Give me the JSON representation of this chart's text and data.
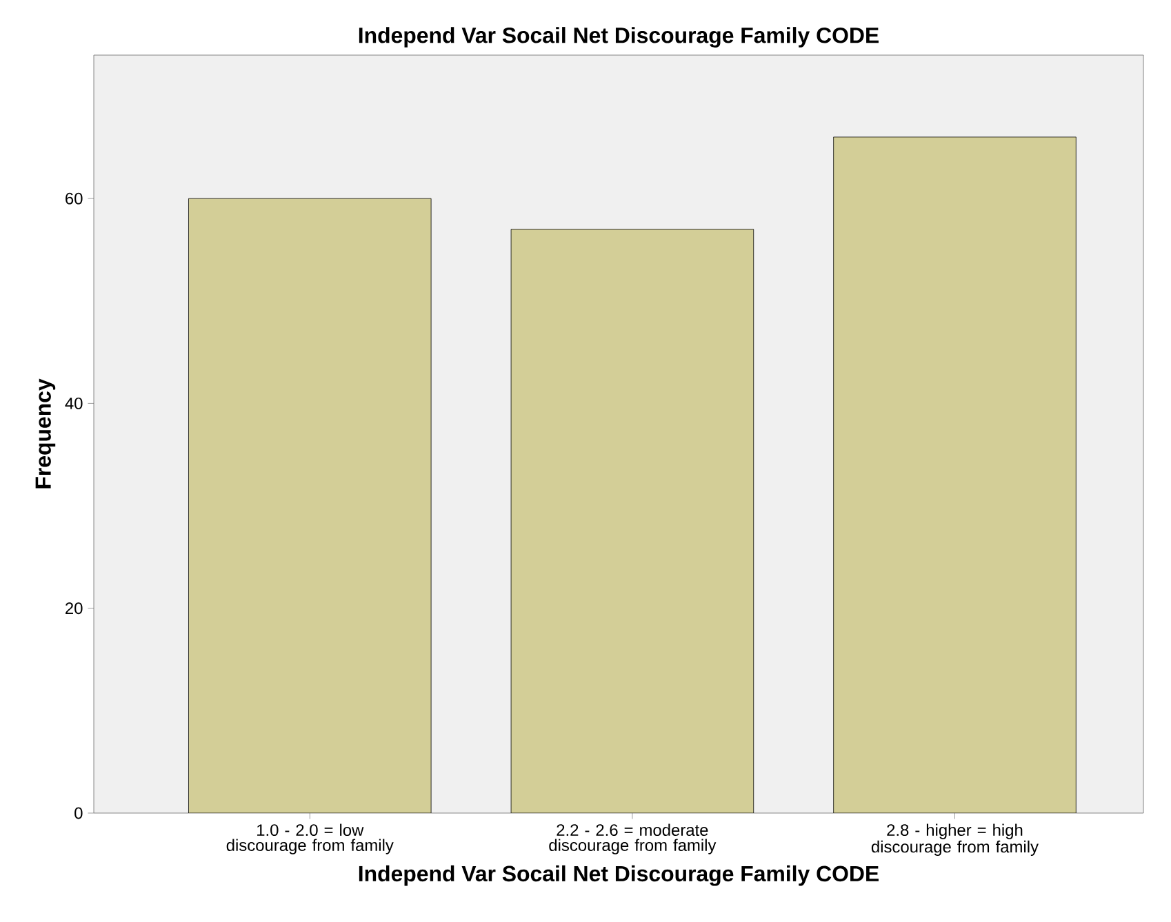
{
  "chart_data": {
    "type": "bar",
    "title": "Independ Var Socail Net Discourage Family CODE",
    "xlabel": "Independ Var Socail Net Discourage Family CODE",
    "ylabel": "Frequency",
    "categories": [
      "1.0 - 2.0 = low discourage from family",
      "2.2 - 2.6 = moderate discourage from family",
      "2.8 - higher = high discourage from family"
    ],
    "values": [
      60,
      57,
      66
    ],
    "color": "#d3ce97",
    "ylim": [
      0,
      74
    ],
    "yticks": [
      0,
      20,
      40,
      60
    ]
  }
}
